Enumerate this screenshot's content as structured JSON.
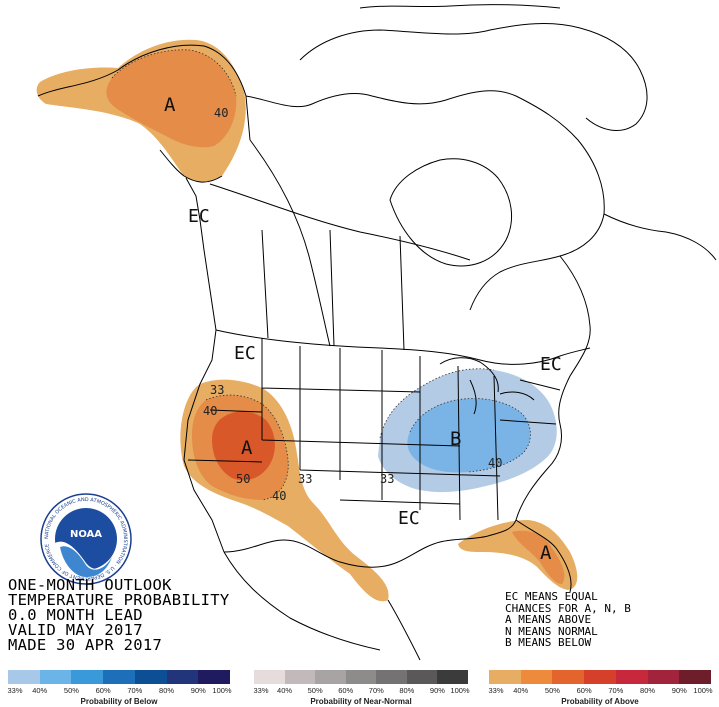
{
  "zones": {
    "alaska_letter": "A",
    "southwest_letter": "A",
    "florida_letter": "A",
    "east_letter": "B"
  },
  "ec_labels": {
    "west": "EC",
    "northwest": "EC",
    "northeast": "EC",
    "south": "EC"
  },
  "contours": {
    "alaska_40": "40",
    "sw_33": "33",
    "sw_40_left": "40",
    "sw_50": "50",
    "sw_40_bottom": "40",
    "central_33": "33",
    "east_33": "33",
    "east_40": "40"
  },
  "title": {
    "line1": "ONE-MONTH OUTLOOK",
    "line2": "TEMPERATURE PROBABILITY",
    "line3": "0.0 MONTH LEAD",
    "line4": "VALID MAY 2017",
    "line5": "MADE 30 APR 2017"
  },
  "legend_text": {
    "line1": "EC MEANS EQUAL",
    "line2": "CHANCES FOR A, N, B",
    "line3": "A MEANS ABOVE",
    "line4": "N MEANS NORMAL",
    "line5": "B MEANS BELOW"
  },
  "logo": {
    "text": "NOAA",
    "ring_text": "NATIONAL OCEANIC AND ATMOSPHERIC ADMINISTRATION · U.S. DEPARTMENT OF COMMERCE"
  },
  "scales": {
    "below": {
      "title": "Probability of Below",
      "ticks": [
        "33%",
        "40%",
        "50%",
        "60%",
        "70%",
        "80%",
        "90%",
        "100%"
      ],
      "colors": [
        "#a7c8e8",
        "#6ab4e8",
        "#3a9ad9",
        "#1c6fb8",
        "#0d4f94",
        "#22357a",
        "#201a5e"
      ]
    },
    "near": {
      "title": "Probability of Near-Normal",
      "ticks": [
        "33%",
        "40%",
        "50%",
        "60%",
        "70%",
        "80%",
        "90%",
        "100%"
      ],
      "colors": [
        "#e6dcdc",
        "#c2baba",
        "#a8a4a4",
        "#8e8b8b",
        "#747272",
        "#5a5858",
        "#3c3b3b"
      ]
    },
    "above": {
      "title": "Probability of Above",
      "ticks": [
        "33%",
        "40%",
        "50%",
        "60%",
        "70%",
        "80%",
        "90%",
        "100%"
      ],
      "colors": [
        "#e6ad63",
        "#ee8a3c",
        "#e3642c",
        "#d6402a",
        "#c8283c",
        "#a1243c",
        "#6e1e2a"
      ]
    }
  },
  "colors": {
    "above_33": "#e6ad63",
    "above_40": "#e58c48",
    "above_50": "#d9582a",
    "below_33": "#b4cbe6",
    "below_40": "#7ab4e6"
  }
}
